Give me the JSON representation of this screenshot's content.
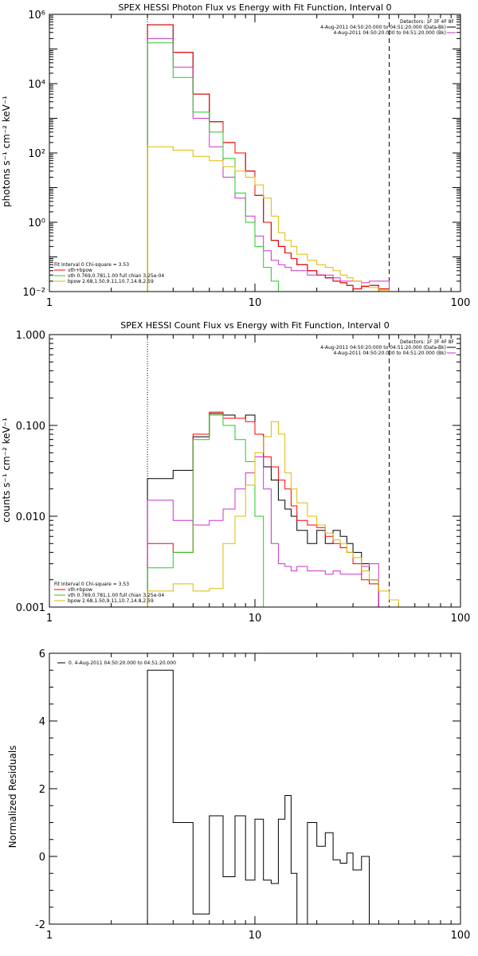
{
  "chart_data": [
    {
      "type": "line",
      "title": "SPEX HESSI Photon Flux vs Energy with Fit Function, Interval 0",
      "ylabel": "photons s⁻¹ cm⁻² keV⁻¹",
      "xlabel": "",
      "xscale": "log",
      "yscale": "log",
      "xlim": [
        1,
        100
      ],
      "ylim": [
        0.01,
        1000000
      ],
      "xticks": [
        1,
        10,
        100
      ],
      "xtick_labels": [
        "1",
        "10",
        "100"
      ],
      "yticks": [
        0.01,
        1,
        100,
        10000,
        1000000
      ],
      "ytick_labels": [
        "10⁻²",
        "10⁰",
        "10²",
        "10⁴",
        "10⁶"
      ],
      "vlines": [
        {
          "x": 3.0,
          "style": "dotted"
        },
        {
          "x": 45,
          "style": "dashed"
        }
      ],
      "legend_topright": [
        "Detectors: 1F 3F 4F 8F",
        "4-Aug-2011 04:50:20.000 to 04:51:20.000 (Data-Bk)",
        "4-Aug-2011 04:50:20.000 to 04:51:20.000 (Bk)"
      ],
      "legend_bottomleft": [
        "Fit Interval 0   Chi-square = 3.53",
        "vth+bpow",
        "vth 0.769,0.781,1.00  full chian 3.25e-04",
        "bpow 2.68,1.50,9.11,10.7,14.8,2.59"
      ],
      "edges": [
        3,
        4,
        5,
        6,
        7,
        8,
        9,
        10,
        11,
        12,
        13,
        14,
        15,
        16,
        18,
        20,
        22,
        24,
        26,
        28,
        30,
        33,
        36,
        40,
        45
      ],
      "series": [
        {
          "name": "",
          "color": "#000000",
          "values": [
            500000,
            80000,
            5000,
            800,
            200,
            100,
            30,
            6,
            1,
            0.3,
            0.2,
            0.13,
            0.09,
            0.06,
            0.04,
            0.03,
            0.025,
            0.02,
            0.018,
            0.015,
            0.012,
            0.014,
            0.015,
            0.012
          ]
        },
        {
          "name": "",
          "color": "#ff0000",
          "values": [
            500000,
            80000,
            5000,
            800,
            200,
            100,
            30,
            6,
            1,
            0.3,
            0.2,
            0.13,
            0.09,
            0.06,
            0.04,
            0.03,
            0.025,
            0.02,
            0.018,
            0.015,
            0.012,
            0.014,
            0.015,
            0.012
          ]
        },
        {
          "name": "",
          "color": "#cc33cc",
          "values": [
            200000,
            30000,
            1000,
            150,
            20,
            5,
            1.5,
            0.4,
            0.15,
            0.08,
            0.06,
            0.05,
            0.04,
            0.04,
            0.03,
            0.03,
            0.03,
            0.025,
            0.02,
            0.02,
            0.02,
            0.018,
            0.02,
            0.02
          ]
        },
        {
          "name": "",
          "color": "#22cc22",
          "values": [
            150000,
            15000,
            1500,
            400,
            70,
            7,
            1,
            0.2,
            0.05,
            0.02,
            0.01
          ]
        },
        {
          "name": "",
          "color": "#ddbb00",
          "values": [
            150,
            120,
            80,
            60,
            40,
            30,
            20,
            12,
            5,
            1.5,
            0.5,
            0.3,
            0.2,
            0.12,
            0.08,
            0.06,
            0.05,
            0.04,
            0.03,
            0.025,
            0.02,
            0.015,
            0.013,
            0.011
          ]
        }
      ]
    },
    {
      "type": "line",
      "title": "SPEX HESSI Count Flux vs Energy with Fit Function, Interval 0",
      "ylabel": "counts s⁻¹ cm⁻² keV⁻¹",
      "xlabel": "",
      "xscale": "log",
      "yscale": "log",
      "xlim": [
        1,
        100
      ],
      "ylim": [
        0.001,
        1
      ],
      "xticks": [
        1,
        10,
        100
      ],
      "xtick_labels": [
        "1",
        "10",
        "100"
      ],
      "yticks": [
        0.001,
        0.01,
        0.1,
        1
      ],
      "ytick_labels": [
        "0.001",
        "0.010",
        "0.100",
        "1.000"
      ],
      "vlines": [
        {
          "x": 3.0,
          "style": "dotted"
        },
        {
          "x": 45,
          "style": "dashed"
        }
      ],
      "legend_topright": [
        "Detectors: 1F 3F 4F 8F",
        "4-Aug-2011 04:50:20.000 to 04:51:20.000 (Data-Bk)",
        "4-Aug-2011 04:50:20.000 to 04:51:20.000 (Bk)"
      ],
      "legend_bottomleft": [
        "Fit Interval 0   Chi-square = 3.53",
        "vth+bpow",
        "vth 0.769,0.781,1.00  full chian 3.25e-04",
        "bpow 2.68,1.50,9.11,10.7,14.8,2.59"
      ],
      "edges": [
        3,
        4,
        5,
        6,
        7,
        8,
        9,
        10,
        11,
        12,
        13,
        14,
        15,
        16,
        18,
        20,
        22,
        24,
        26,
        28,
        30,
        33,
        36,
        40,
        45,
        50,
        55,
        60
      ],
      "series": [
        {
          "name": "",
          "color": "#000000",
          "values": [
            0.026,
            0.032,
            0.075,
            0.135,
            0.13,
            0.12,
            0.13,
            0.08,
            0.035,
            0.025,
            0.015,
            0.012,
            0.01,
            0.007,
            0.005,
            0.007,
            0.005,
            0.007,
            0.006,
            0.005,
            0.004,
            0.003,
            0.002
          ]
        },
        {
          "name": "",
          "color": "#ff0000",
          "values": [
            0.005,
            0.004,
            0.08,
            0.14,
            0.12,
            0.12,
            0.11,
            0.08,
            0.045,
            0.035,
            0.025,
            0.02,
            0.013,
            0.009,
            0.008,
            0.0075,
            0.006,
            0.005,
            0.0045,
            0.004,
            0.003,
            0.002,
            0.0018
          ]
        },
        {
          "name": "",
          "color": "#cc33cc",
          "values": [
            0.015,
            0.009,
            0.008,
            0.009,
            0.012,
            0.02,
            0.03,
            0.045,
            0.02,
            0.005,
            0.003,
            0.0028,
            0.0025,
            0.0028,
            0.0025,
            0.0025,
            0.0023,
            0.0025,
            0.0023,
            0.0023,
            0.0023,
            0.0028,
            0.003
          ]
        },
        {
          "name": "",
          "color": "#22cc22",
          "values": [
            0.0027,
            0.004,
            0.07,
            0.13,
            0.1,
            0.07,
            0.04,
            0.01,
            0.001
          ]
        },
        {
          "name": "",
          "color": "#ddbb00",
          "values": [
            0.0015,
            0.0018,
            0.0015,
            0.0016,
            0.005,
            0.01,
            0.022,
            0.05,
            0.075,
            0.11,
            0.08,
            0.03,
            0.02,
            0.014,
            0.01,
            0.008,
            0.0065,
            0.0055,
            0.005,
            0.004,
            0.0035,
            0.0025,
            0.002,
            0.0015,
            0.0012,
            0.001,
            0.0009
          ]
        }
      ]
    },
    {
      "type": "line",
      "title": "",
      "ylabel": "Normalized Residuals",
      "xlabel": "",
      "xscale": "log",
      "yscale": "linear",
      "xlim": [
        1,
        100
      ],
      "ylim": [
        -2,
        6
      ],
      "xticks": [
        1,
        10,
        100
      ],
      "xtick_labels": [
        "1",
        "10",
        "100"
      ],
      "yticks": [
        -2,
        0,
        2,
        4,
        6
      ],
      "ytick_labels": [
        "-2",
        "0",
        "2",
        "4",
        "6"
      ],
      "legend": [
        "0. 4-Aug-2011 04:50:20.000 to 04:51:20.000"
      ],
      "edges": [
        3,
        4,
        5,
        6,
        7,
        8,
        9,
        10,
        11,
        12,
        13,
        14,
        15,
        16,
        18,
        20,
        22,
        24,
        26,
        28,
        30,
        33,
        36,
        40,
        45
      ],
      "series": [
        {
          "name": "0. 4-Aug-2011 04:50:20.000 to 04:51:20.000",
          "color": "#000000",
          "values": [
            5.5,
            1.0,
            -1.7,
            1.2,
            -0.6,
            1.2,
            -0.7,
            1.1,
            -0.7,
            -0.8,
            1.1,
            1.8,
            -0.5,
            -2.0,
            1.0,
            0.3,
            0.7,
            -0.1,
            -0.2,
            0.1,
            -0.4,
            0.0
          ]
        }
      ]
    }
  ]
}
